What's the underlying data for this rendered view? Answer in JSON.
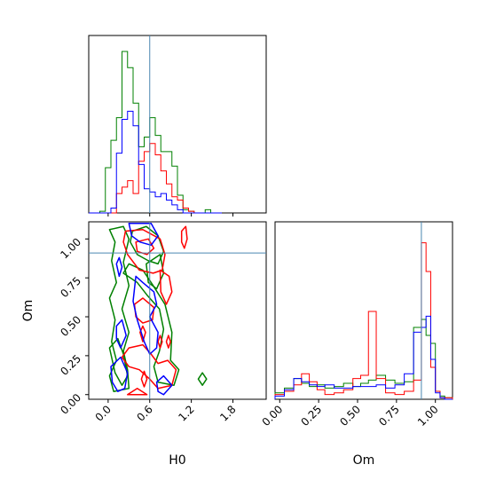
{
  "chart_data": {
    "type": "corner",
    "parameters": [
      "H0",
      "Om"
    ],
    "truths": {
      "H0": 0.6,
      "Om": 0.91
    },
    "truth_color": "#4a86b0",
    "axes": {
      "H0": {
        "label": "H0",
        "range": [
          -0.28,
          2.28
        ],
        "ticks": [
          0.0,
          0.6,
          1.2,
          1.8
        ],
        "tick_labels": [
          "0.0",
          "0.6",
          "1.2",
          "1.8"
        ]
      },
      "Om": {
        "label": "Om",
        "range": [
          -0.03,
          1.11
        ],
        "ticks": [
          0.0,
          0.25,
          0.5,
          0.75,
          1.0
        ],
        "tick_labels": [
          "0.00",
          "0.25",
          "0.50",
          "0.75",
          "1.00"
        ]
      }
    },
    "series": [
      {
        "color": "#008000",
        "stroke": "green"
      },
      {
        "color": "#ff0000",
        "stroke": "red"
      },
      {
        "color": "#0000ff",
        "stroke": "blue"
      }
    ],
    "hist_H0": {
      "bin_edges": [
        -0.28,
        -0.2,
        -0.12,
        -0.04,
        0.04,
        0.12,
        0.2,
        0.28,
        0.36,
        0.44,
        0.52,
        0.6,
        0.68,
        0.76,
        0.84,
        0.92,
        1.0,
        1.08,
        1.16,
        1.24,
        1.32,
        1.4,
        1.48,
        1.56,
        1.64
      ],
      "counts": [
        [
          0,
          0,
          0.01,
          0.28,
          0.45,
          0.59,
          1.0,
          0.9,
          0.68,
          0.41,
          0.47,
          0.59,
          0.48,
          0.38,
          0.38,
          0.29,
          0.11,
          0.02,
          0.01,
          0,
          0,
          0.02,
          0,
          0
        ],
        [
          0,
          0,
          0,
          0,
          0,
          0.12,
          0.16,
          0.2,
          0.12,
          0.32,
          0.38,
          0.43,
          0.36,
          0.26,
          0.18,
          0.1,
          0.08,
          0.03,
          0.01,
          0,
          0,
          0,
          0,
          0
        ],
        [
          0,
          0,
          0,
          0,
          0.03,
          0.37,
          0.58,
          0.63,
          0.54,
          0.3,
          0.15,
          0.13,
          0.1,
          0.12,
          0.08,
          0.05,
          0.02,
          0,
          0,
          0,
          0,
          0,
          0,
          0
        ]
      ]
    },
    "hist_Om": {
      "bin_edges": [
        -0.03,
        0.03,
        0.09,
        0.14,
        0.19,
        0.24,
        0.29,
        0.35,
        0.41,
        0.47,
        0.52,
        0.57,
        0.62,
        0.68,
        0.74,
        0.8,
        0.86,
        0.91,
        0.94,
        0.97,
        1.0,
        1.03,
        1.06,
        1.11
      ],
      "counts": [
        [
          0.04,
          0.07,
          0.13,
          0.1,
          0.08,
          0.09,
          0.07,
          0.08,
          0.1,
          0.08,
          0.1,
          0.12,
          0.15,
          0.12,
          0.1,
          0.11,
          0.45,
          0.5,
          0.4,
          0.35,
          0.05,
          0.02,
          0.01
        ],
        [
          0.03,
          0.05,
          0.09,
          0.16,
          0.11,
          0.06,
          0.03,
          0.04,
          0.06,
          0.13,
          0.15,
          0.55,
          0.13,
          0.04,
          0.03,
          0.05,
          0.12,
          0.98,
          0.8,
          0.2,
          0.05,
          0.01,
          0.01
        ],
        [
          0.02,
          0.06,
          0.13,
          0.11,
          0.09,
          0.08,
          0.09,
          0.07,
          0.07,
          0.08,
          0.08,
          0.08,
          0.09,
          0.07,
          0.09,
          0.16,
          0.42,
          0.45,
          0.52,
          0.25,
          0.04,
          0.01,
          0.0
        ]
      ]
    },
    "contours_2d": [
      {
        "series": 0,
        "closed": true,
        "points": [
          [
            0.02,
            1.06
          ],
          [
            0.1,
            0.98
          ],
          [
            0.05,
            0.86
          ],
          [
            0.12,
            0.72
          ],
          [
            0.02,
            0.62
          ],
          [
            0.1,
            0.48
          ],
          [
            0.05,
            0.34
          ],
          [
            0.12,
            0.22
          ],
          [
            0.02,
            0.12
          ],
          [
            0.08,
            0.02
          ],
          [
            0.3,
            0.04
          ],
          [
            0.28,
            0.16
          ],
          [
            0.22,
            0.28
          ],
          [
            0.3,
            0.4
          ],
          [
            0.2,
            0.55
          ],
          [
            0.3,
            0.7
          ],
          [
            0.22,
            0.85
          ],
          [
            0.3,
            1.0
          ],
          [
            0.22,
            1.08
          ]
        ]
      },
      {
        "series": 0,
        "closed": true,
        "points": [
          [
            0.35,
            1.05
          ],
          [
            0.55,
            1.08
          ],
          [
            0.72,
            1.02
          ],
          [
            0.8,
            0.92
          ],
          [
            0.72,
            0.84
          ],
          [
            0.58,
            0.86
          ],
          [
            0.42,
            0.9
          ],
          [
            0.32,
            0.98
          ]
        ]
      },
      {
        "series": 0,
        "closed": true,
        "points": [
          [
            0.55,
            0.84
          ],
          [
            0.75,
            0.9
          ],
          [
            0.8,
            0.78
          ],
          [
            0.7,
            0.68
          ],
          [
            0.58,
            0.72
          ]
        ]
      },
      {
        "series": 0,
        "closed": true,
        "points": [
          [
            0.22,
            0.78
          ],
          [
            0.42,
            0.72
          ],
          [
            0.56,
            0.64
          ],
          [
            0.74,
            0.55
          ],
          [
            0.8,
            0.42
          ],
          [
            0.74,
            0.28
          ],
          [
            0.66,
            0.18
          ],
          [
            0.72,
            0.08
          ],
          [
            0.95,
            0.06
          ],
          [
            1.02,
            0.16
          ],
          [
            0.9,
            0.22
          ],
          [
            0.92,
            0.4
          ],
          [
            0.82,
            0.58
          ],
          [
            0.65,
            0.7
          ],
          [
            0.5,
            0.8
          ],
          [
            0.3,
            0.84
          ]
        ]
      },
      {
        "series": 0,
        "closed": true,
        "points": [
          [
            0.02,
            0.3
          ],
          [
            0.14,
            0.36
          ],
          [
            0.22,
            0.26
          ],
          [
            0.28,
            0.12
          ],
          [
            0.2,
            0.06
          ],
          [
            0.1,
            0.14
          ]
        ]
      },
      {
        "series": 0,
        "closed": true,
        "points": [
          [
            1.3,
            0.1
          ],
          [
            1.36,
            0.14
          ],
          [
            1.42,
            0.1
          ],
          [
            1.36,
            0.06
          ]
        ]
      },
      {
        "series": 1,
        "closed": true,
        "points": [
          [
            0.25,
            1.05
          ],
          [
            0.5,
            1.06
          ],
          [
            0.75,
            1.0
          ],
          [
            0.82,
            0.9
          ],
          [
            0.78,
            0.8
          ],
          [
            0.65,
            0.78
          ],
          [
            0.45,
            0.8
          ],
          [
            0.28,
            0.9
          ],
          [
            0.22,
            0.98
          ]
        ]
      },
      {
        "series": 1,
        "closed": true,
        "points": [
          [
            0.4,
            0.98
          ],
          [
            0.58,
            1.0
          ],
          [
            0.66,
            0.94
          ],
          [
            0.56,
            0.9
          ],
          [
            0.42,
            0.92
          ]
        ]
      },
      {
        "series": 1,
        "closed": true,
        "points": [
          [
            0.75,
            0.8
          ],
          [
            0.88,
            0.76
          ],
          [
            0.92,
            0.66
          ],
          [
            0.84,
            0.58
          ],
          [
            0.76,
            0.66
          ]
        ]
      },
      {
        "series": 1,
        "closed": true,
        "points": [
          [
            1.06,
            1.05
          ],
          [
            1.12,
            1.08
          ],
          [
            1.14,
            1.0
          ],
          [
            1.1,
            0.94
          ],
          [
            1.06,
            0.98
          ]
        ]
      },
      {
        "series": 1,
        "closed": true,
        "points": [
          [
            0.38,
            0.58
          ],
          [
            0.5,
            0.62
          ],
          [
            0.66,
            0.56
          ],
          [
            0.64,
            0.48
          ],
          [
            0.5,
            0.46
          ],
          [
            0.4,
            0.5
          ]
        ]
      },
      {
        "series": 1,
        "closed": true,
        "points": [
          [
            0.2,
            0.24
          ],
          [
            0.3,
            0.3
          ],
          [
            0.5,
            0.32
          ],
          [
            0.62,
            0.26
          ],
          [
            0.72,
            0.2
          ],
          [
            0.86,
            0.22
          ],
          [
            0.98,
            0.16
          ],
          [
            0.92,
            0.06
          ],
          [
            0.72,
            0.04
          ],
          [
            0.6,
            0.1
          ],
          [
            0.45,
            0.16
          ],
          [
            0.3,
            0.18
          ]
        ]
      },
      {
        "series": 1,
        "closed": true,
        "points": [
          [
            0.46,
            0.4
          ],
          [
            0.5,
            0.44
          ],
          [
            0.54,
            0.4
          ],
          [
            0.5,
            0.34
          ]
        ]
      },
      {
        "series": 1,
        "closed": true,
        "points": [
          [
            0.72,
            0.34
          ],
          [
            0.75,
            0.38
          ],
          [
            0.78,
            0.34
          ],
          [
            0.75,
            0.3
          ]
        ]
      },
      {
        "series": 1,
        "closed": true,
        "points": [
          [
            0.84,
            0.34
          ],
          [
            0.87,
            0.38
          ],
          [
            0.9,
            0.34
          ],
          [
            0.87,
            0.3
          ]
        ]
      },
      {
        "series": 1,
        "closed": true,
        "points": [
          [
            0.48,
            0.1
          ],
          [
            0.52,
            0.15
          ],
          [
            0.56,
            0.1
          ],
          [
            0.52,
            0.05
          ]
        ]
      },
      {
        "series": 1,
        "closed": true,
        "points": [
          [
            0.28,
            0.0
          ],
          [
            0.42,
            0.04
          ],
          [
            0.56,
            0.0
          ]
        ]
      },
      {
        "series": 2,
        "closed": true,
        "points": [
          [
            0.3,
            1.1
          ],
          [
            0.62,
            1.1
          ],
          [
            0.72,
            1.02
          ],
          [
            0.62,
            0.96
          ],
          [
            0.46,
            0.98
          ],
          [
            0.34,
            1.02
          ]
        ]
      },
      {
        "series": 2,
        "closed": true,
        "points": [
          [
            0.4,
            0.76
          ],
          [
            0.5,
            0.72
          ],
          [
            0.66,
            0.66
          ],
          [
            0.7,
            0.58
          ],
          [
            0.6,
            0.5
          ],
          [
            0.72,
            0.4
          ],
          [
            0.7,
            0.3
          ],
          [
            0.6,
            0.26
          ],
          [
            0.52,
            0.34
          ],
          [
            0.42,
            0.48
          ],
          [
            0.36,
            0.6
          ]
        ]
      },
      {
        "series": 2,
        "closed": true,
        "points": [
          [
            0.12,
            0.84
          ],
          [
            0.16,
            0.88
          ],
          [
            0.2,
            0.82
          ],
          [
            0.16,
            0.76
          ]
        ]
      },
      {
        "series": 2,
        "closed": true,
        "points": [
          [
            0.12,
            0.44
          ],
          [
            0.2,
            0.48
          ],
          [
            0.26,
            0.38
          ],
          [
            0.18,
            0.3
          ],
          [
            0.12,
            0.36
          ]
        ]
      },
      {
        "series": 2,
        "closed": true,
        "points": [
          [
            0.04,
            0.18
          ],
          [
            0.18,
            0.24
          ],
          [
            0.28,
            0.14
          ],
          [
            0.24,
            0.04
          ],
          [
            0.14,
            0.02
          ],
          [
            0.06,
            0.08
          ]
        ]
      },
      {
        "series": 2,
        "closed": true,
        "points": [
          [
            0.7,
            0.08
          ],
          [
            0.8,
            0.12
          ],
          [
            0.92,
            0.06
          ],
          [
            0.8,
            0.0
          ],
          [
            0.72,
            0.02
          ]
        ]
      }
    ]
  }
}
